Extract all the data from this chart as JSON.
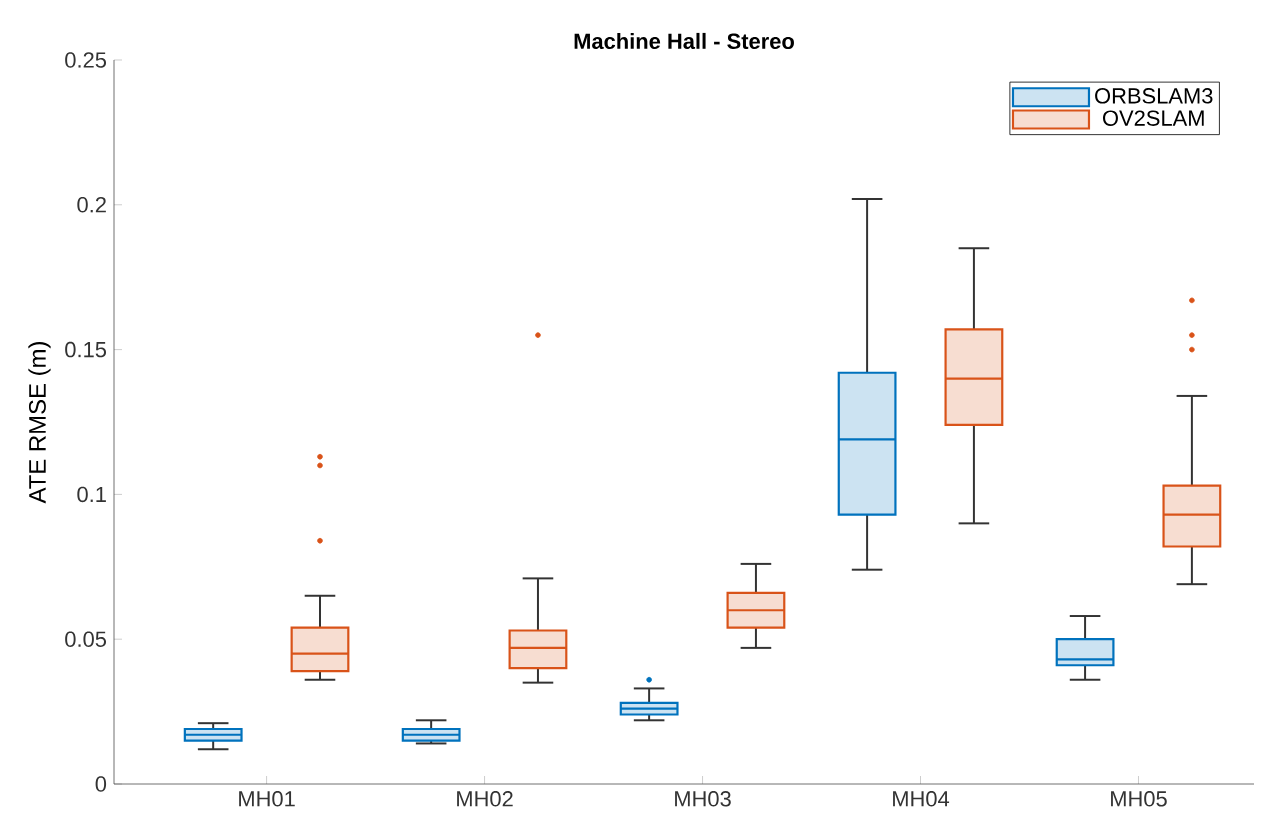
{
  "chart_data": {
    "type": "box",
    "title": "Machine Hall - Stereo",
    "ylabel": "ATE RMSE (m)",
    "categories": [
      "MH01",
      "MH02",
      "MH03",
      "MH04",
      "MH05"
    ],
    "series": [
      {
        "name": "ORBSLAM3",
        "color": "#0072bd",
        "boxes": [
          {
            "low": 0.012,
            "q1": 0.015,
            "median": 0.017,
            "q3": 0.019,
            "high": 0.021
          },
          {
            "low": 0.014,
            "q1": 0.015,
            "median": 0.017,
            "q3": 0.019,
            "high": 0.022
          },
          {
            "low": 0.022,
            "q1": 0.024,
            "median": 0.026,
            "q3": 0.028,
            "high": 0.033,
            "outliers": [
              0.036
            ]
          },
          {
            "low": 0.074,
            "q1": 0.093,
            "median": 0.119,
            "q3": 0.142,
            "high": 0.202
          },
          {
            "low": 0.036,
            "q1": 0.041,
            "median": 0.043,
            "q3": 0.05,
            "high": 0.058
          }
        ]
      },
      {
        "name": "OV2SLAM",
        "color": "#d95319",
        "boxes": [
          {
            "low": 0.036,
            "q1": 0.039,
            "median": 0.045,
            "q3": 0.054,
            "high": 0.065,
            "outliers": [
              0.113,
              0.11,
              0.084
            ]
          },
          {
            "low": 0.035,
            "q1": 0.04,
            "median": 0.047,
            "q3": 0.053,
            "high": 0.071,
            "outliers": [
              0.155
            ]
          },
          {
            "low": 0.047,
            "q1": 0.054,
            "median": 0.06,
            "q3": 0.066,
            "high": 0.076
          },
          {
            "low": 0.09,
            "q1": 0.124,
            "median": 0.14,
            "q3": 0.157,
            "high": 0.185
          },
          {
            "low": 0.069,
            "q1": 0.082,
            "median": 0.093,
            "q3": 0.103,
            "high": 0.134,
            "outliers": [
              0.167,
              0.155,
              0.15
            ]
          }
        ]
      }
    ],
    "ylim": [
      0,
      0.25
    ],
    "yticks": [
      0,
      0.05,
      0.1,
      0.15,
      0.2,
      0.25
    ],
    "legend": "top right"
  }
}
